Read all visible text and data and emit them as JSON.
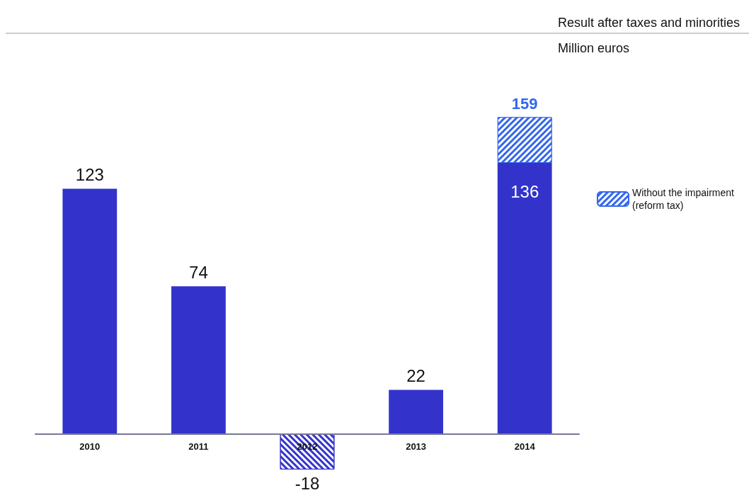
{
  "chart_data": {
    "type": "bar",
    "title": "Result after taxes and minorities",
    "subtitle": "Million euros",
    "categories": [
      "2010",
      "2011",
      "2012",
      "2013",
      "2014"
    ],
    "stacked": true,
    "series": [
      {
        "color": "#3333cc",
        "values": [
          123,
          74,
          -18,
          22,
          136
        ],
        "value_labels": [
          "123",
          "74",
          "-18",
          "22",
          "136"
        ]
      },
      {
        "name": "Without the impairment (reform tax)",
        "color": "#3366ee",
        "values": [
          null,
          null,
          null,
          null,
          23
        ]
      }
    ],
    "totals": [
      null,
      null,
      null,
      null,
      "159"
    ],
    "legend": "right"
  }
}
